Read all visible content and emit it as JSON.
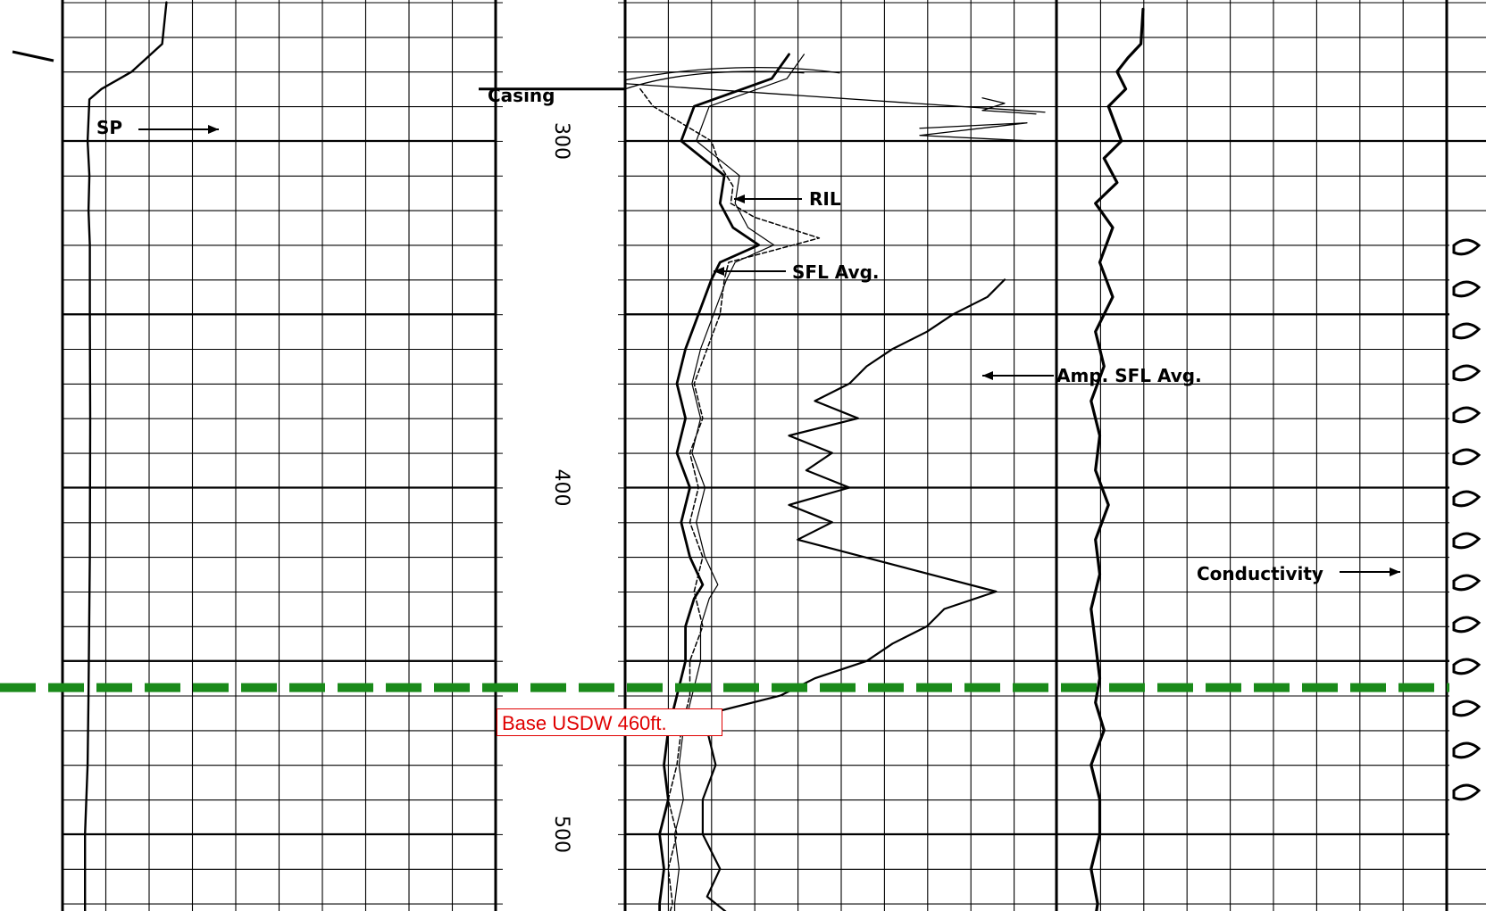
{
  "chart_data": {
    "type": "line",
    "title": "",
    "depth_axis": {
      "unit": "ft",
      "range": [
        252,
        524
      ],
      "tick_labels": [
        "300",
        "400",
        "500"
      ]
    },
    "curve_labels": {
      "sp": "SP",
      "casing": "Casing",
      "ril": "RIL",
      "sfl_avg": "SFL Avg.",
      "amp_sfl_avg": "Amp. SFL Avg.",
      "conductivity": "Conductivity"
    },
    "marker": {
      "label": "Base USDW 460ft.",
      "depth": 460,
      "color": "#1a8a1a",
      "label_color": "#e00000"
    },
    "casing_depth": 285,
    "series": [
      {
        "name": "SP",
        "depth": [
          260,
          272,
          280,
          285,
          288,
          300,
          310,
          320,
          330,
          350,
          380,
          420,
          460,
          480,
          500,
          524
        ],
        "value": [
          2.4,
          2.3,
          1.6,
          0.9,
          0.62,
          0.58,
          0.62,
          0.6,
          0.63,
          0.63,
          0.64,
          0.63,
          0.6,
          0.58,
          0.52,
          0.52
        ]
      },
      {
        "name": "RIL",
        "depth": [
          285,
          290,
          300,
          307,
          313,
          318,
          322,
          328,
          335,
          340,
          350,
          360,
          370,
          380,
          390,
          400,
          410,
          420,
          430,
          440,
          450,
          460,
          470,
          480,
          490,
          500,
          510,
          520,
          524
        ],
        "value": [
          0.35,
          0.65,
          2.0,
          2.2,
          2.5,
          2.45,
          3.0,
          4.5,
          2.4,
          2.3,
          2.2,
          1.9,
          1.6,
          1.8,
          1.5,
          1.7,
          1.5,
          1.8,
          1.6,
          1.8,
          1.5,
          1.5,
          1.3,
          1.2,
          1.0,
          1.2,
          1.0,
          1.1,
          1.0
        ]
      },
      {
        "name": "SFL Avg.",
        "depth": [
          275,
          282,
          290,
          300,
          310,
          318,
          325,
          330,
          335,
          340,
          350,
          360,
          370,
          380,
          390,
          400,
          410,
          420,
          428,
          432,
          440,
          450,
          460,
          470,
          480,
          490,
          500,
          510,
          520,
          524
        ],
        "value": [
          3.8,
          3.4,
          1.6,
          1.3,
          2.3,
          2.2,
          2.5,
          3.1,
          2.2,
          2.0,
          1.7,
          1.4,
          1.2,
          1.4,
          1.2,
          1.5,
          1.3,
          1.5,
          1.8,
          1.6,
          1.4,
          1.4,
          1.2,
          1.0,
          0.9,
          1.0,
          0.8,
          0.9,
          0.8,
          0.8
        ]
      },
      {
        "name": "Amp. SFL Avg.",
        "depth": [
          340,
          345,
          350,
          355,
          360,
          365,
          370,
          375,
          380,
          385,
          390,
          395,
          400,
          405,
          410,
          415,
          430,
          435,
          440,
          445,
          450,
          455,
          460,
          465,
          470,
          480,
          490,
          500,
          510,
          518,
          524
        ],
        "value": [
          4.4,
          4.2,
          3.8,
          3.5,
          3.1,
          2.8,
          2.6,
          2.2,
          2.7,
          1.9,
          2.4,
          2.1,
          2.6,
          1.9,
          2.4,
          2.0,
          4.3,
          3.7,
          3.5,
          3.1,
          2.8,
          2.2,
          1.8,
          1.0,
          0.95,
          1.05,
          0.9,
          0.9,
          1.1,
          0.95,
          1.25
        ]
      },
      {
        "name": "Conductivity",
        "depth": [
          262,
          272,
          276,
          280,
          285,
          290,
          300,
          305,
          312,
          318,
          325,
          335,
          345,
          355,
          365,
          375,
          385,
          395,
          405,
          415,
          425,
          435,
          445,
          455,
          462,
          470,
          480,
          490,
          500,
          510,
          520,
          524
        ],
        "value": [
          2.0,
          1.95,
          1.65,
          1.4,
          1.6,
          1.2,
          1.5,
          1.1,
          1.4,
          0.9,
          1.3,
          1.0,
          1.3,
          0.9,
          1.1,
          0.8,
          1.0,
          0.9,
          1.2,
          0.9,
          1.0,
          0.8,
          0.9,
          1.0,
          0.9,
          1.1,
          0.8,
          1.0,
          1.0,
          0.8,
          0.95,
          0.9
        ]
      }
    ]
  }
}
